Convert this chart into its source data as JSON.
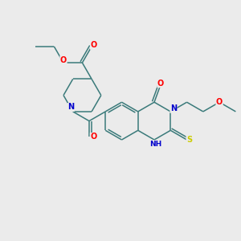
{
  "background_color": "#ebebeb",
  "bond_color": "#3a7a7a",
  "atom_colors": {
    "O": "#ff0000",
    "N": "#0000cc",
    "S": "#cccc00",
    "C": "#3a7a7a"
  },
  "font_size": 6.5,
  "figsize": [
    3.0,
    3.0
  ],
  "dpi": 100
}
